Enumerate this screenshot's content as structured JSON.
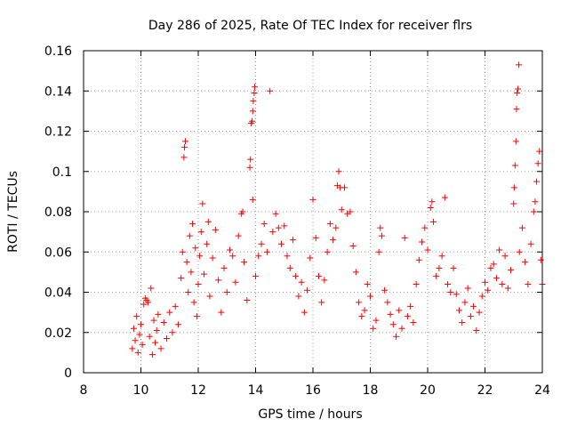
{
  "chart_data": {
    "type": "scatter",
    "title": "Day 286 of 2025, Rate Of TEC Index for receiver flrs",
    "xlabel": "GPS time / hours",
    "ylabel": "ROTI / TECUs",
    "xlim": [
      8,
      24
    ],
    "ylim": [
      0,
      0.16
    ],
    "xticks": [
      8,
      10,
      12,
      14,
      16,
      18,
      20,
      22,
      24
    ],
    "xtick_labels": [
      "8",
      "10",
      "12",
      "14",
      "16",
      "18",
      "20",
      "22",
      "24"
    ],
    "yticks": [
      0,
      0.02,
      0.04,
      0.06,
      0.08,
      0.1,
      0.12,
      0.14,
      0.16
    ],
    "ytick_labels": [
      "0",
      "0.02",
      "0.04",
      "0.06",
      "0.08",
      "0.1",
      "0.12",
      "0.14",
      "0.16"
    ],
    "grid": true,
    "marker": "+",
    "color": "#ff0000",
    "series": [
      {
        "name": "ROTI",
        "points": [
          [
            9.7,
            0.012
          ],
          [
            9.75,
            0.022
          ],
          [
            9.8,
            0.016
          ],
          [
            9.85,
            0.028
          ],
          [
            9.9,
            0.01
          ],
          [
            9.95,
            0.019
          ],
          [
            10.0,
            0.024
          ],
          [
            10.05,
            0.014
          ],
          [
            10.1,
            0.034
          ],
          [
            10.15,
            0.037
          ],
          [
            10.2,
            0.036
          ],
          [
            10.25,
            0.035
          ],
          [
            10.3,
            0.018
          ],
          [
            10.35,
            0.042
          ],
          [
            10.4,
            0.009
          ],
          [
            10.45,
            0.026
          ],
          [
            10.5,
            0.015
          ],
          [
            10.55,
            0.021
          ],
          [
            10.6,
            0.029
          ],
          [
            10.7,
            0.012
          ],
          [
            10.8,
            0.025
          ],
          [
            10.9,
            0.017
          ],
          [
            11.0,
            0.03
          ],
          [
            11.1,
            0.02
          ],
          [
            11.2,
            0.033
          ],
          [
            11.3,
            0.024
          ],
          [
            11.4,
            0.047
          ],
          [
            11.45,
            0.06
          ],
          [
            11.5,
            0.107
          ],
          [
            11.52,
            0.112
          ],
          [
            11.55,
            0.115
          ],
          [
            11.6,
            0.055
          ],
          [
            11.65,
            0.04
          ],
          [
            11.7,
            0.068
          ],
          [
            11.75,
            0.05
          ],
          [
            11.8,
            0.074
          ],
          [
            11.85,
            0.035
          ],
          [
            11.9,
            0.062
          ],
          [
            11.95,
            0.028
          ],
          [
            12.0,
            0.044
          ],
          [
            12.05,
            0.058
          ],
          [
            12.1,
            0.07
          ],
          [
            12.15,
            0.084
          ],
          [
            12.2,
            0.049
          ],
          [
            12.3,
            0.064
          ],
          [
            12.35,
            0.075
          ],
          [
            12.4,
            0.038
          ],
          [
            12.5,
            0.057
          ],
          [
            12.6,
            0.071
          ],
          [
            12.7,
            0.046
          ],
          [
            12.8,
            0.03
          ],
          [
            12.9,
            0.052
          ],
          [
            13.0,
            0.04
          ],
          [
            13.1,
            0.061
          ],
          [
            13.2,
            0.058
          ],
          [
            13.3,
            0.045
          ],
          [
            13.4,
            0.068
          ],
          [
            13.5,
            0.079
          ],
          [
            13.55,
            0.08
          ],
          [
            13.6,
            0.055
          ],
          [
            13.7,
            0.036
          ],
          [
            13.8,
            0.102
          ],
          [
            13.82,
            0.106
          ],
          [
            13.85,
            0.124
          ],
          [
            13.88,
            0.125
          ],
          [
            13.9,
            0.13
          ],
          [
            13.92,
            0.135
          ],
          [
            13.95,
            0.139
          ],
          [
            13.97,
            0.142
          ],
          [
            13.9,
            0.086
          ],
          [
            14.0,
            0.048
          ],
          [
            14.1,
            0.058
          ],
          [
            14.2,
            0.064
          ],
          [
            14.3,
            0.074
          ],
          [
            14.4,
            0.06
          ],
          [
            14.5,
            0.14
          ],
          [
            14.6,
            0.07
          ],
          [
            14.7,
            0.079
          ],
          [
            14.8,
            0.072
          ],
          [
            14.9,
            0.064
          ],
          [
            15.0,
            0.073
          ],
          [
            15.1,
            0.058
          ],
          [
            15.2,
            0.052
          ],
          [
            15.3,
            0.066
          ],
          [
            15.4,
            0.048
          ],
          [
            15.5,
            0.038
          ],
          [
            15.6,
            0.045
          ],
          [
            15.7,
            0.03
          ],
          [
            15.8,
            0.041
          ],
          [
            15.9,
            0.057
          ],
          [
            16.0,
            0.086
          ],
          [
            16.1,
            0.067
          ],
          [
            16.2,
            0.048
          ],
          [
            16.3,
            0.035
          ],
          [
            16.4,
            0.046
          ],
          [
            16.5,
            0.06
          ],
          [
            16.6,
            0.074
          ],
          [
            16.7,
            0.066
          ],
          [
            16.8,
            0.072
          ],
          [
            16.85,
            0.093
          ],
          [
            16.9,
            0.1
          ],
          [
            16.95,
            0.092
          ],
          [
            17.0,
            0.081
          ],
          [
            17.1,
            0.092
          ],
          [
            17.2,
            0.079
          ],
          [
            17.3,
            0.08
          ],
          [
            17.4,
            0.063
          ],
          [
            17.5,
            0.05
          ],
          [
            17.6,
            0.035
          ],
          [
            17.7,
            0.028
          ],
          [
            17.8,
            0.031
          ],
          [
            17.9,
            0.044
          ],
          [
            18.0,
            0.038
          ],
          [
            18.1,
            0.022
          ],
          [
            18.2,
            0.026
          ],
          [
            18.3,
            0.06
          ],
          [
            18.35,
            0.072
          ],
          [
            18.4,
            0.068
          ],
          [
            18.5,
            0.041
          ],
          [
            18.6,
            0.035
          ],
          [
            18.7,
            0.029
          ],
          [
            18.8,
            0.024
          ],
          [
            18.9,
            0.018
          ],
          [
            19.0,
            0.031
          ],
          [
            19.1,
            0.022
          ],
          [
            19.2,
            0.067
          ],
          [
            19.3,
            0.028
          ],
          [
            19.4,
            0.033
          ],
          [
            19.5,
            0.025
          ],
          [
            19.6,
            0.044
          ],
          [
            19.7,
            0.056
          ],
          [
            19.8,
            0.065
          ],
          [
            19.9,
            0.072
          ],
          [
            20.0,
            0.061
          ],
          [
            20.1,
            0.082
          ],
          [
            20.15,
            0.085
          ],
          [
            20.2,
            0.075
          ],
          [
            20.3,
            0.048
          ],
          [
            20.4,
            0.052
          ],
          [
            20.5,
            0.058
          ],
          [
            20.6,
            0.087
          ],
          [
            20.7,
            0.044
          ],
          [
            20.8,
            0.04
          ],
          [
            20.9,
            0.052
          ],
          [
            21.0,
            0.039
          ],
          [
            21.1,
            0.031
          ],
          [
            21.2,
            0.025
          ],
          [
            21.3,
            0.035
          ],
          [
            21.4,
            0.042
          ],
          [
            21.5,
            0.028
          ],
          [
            21.6,
            0.033
          ],
          [
            21.7,
            0.021
          ],
          [
            21.8,
            0.03
          ],
          [
            21.9,
            0.038
          ],
          [
            22.0,
            0.045
          ],
          [
            22.1,
            0.041
          ],
          [
            22.2,
            0.052
          ],
          [
            22.3,
            0.054
          ],
          [
            22.4,
            0.047
          ],
          [
            22.5,
            0.061
          ],
          [
            22.6,
            0.044
          ],
          [
            22.7,
            0.058
          ],
          [
            22.8,
            0.042
          ],
          [
            22.9,
            0.051
          ],
          [
            23.0,
            0.084
          ],
          [
            23.02,
            0.092
          ],
          [
            23.05,
            0.103
          ],
          [
            23.08,
            0.115
          ],
          [
            23.1,
            0.131
          ],
          [
            23.12,
            0.139
          ],
          [
            23.15,
            0.141
          ],
          [
            23.18,
            0.153
          ],
          [
            23.2,
            0.06
          ],
          [
            23.3,
            0.072
          ],
          [
            23.4,
            0.055
          ],
          [
            23.5,
            0.044
          ],
          [
            23.6,
            0.064
          ],
          [
            23.7,
            0.08
          ],
          [
            23.75,
            0.085
          ],
          [
            23.8,
            0.095
          ],
          [
            23.85,
            0.104
          ],
          [
            23.9,
            0.11
          ],
          [
            23.95,
            0.056
          ],
          [
            24.0,
            0.044
          ]
        ]
      }
    ]
  }
}
